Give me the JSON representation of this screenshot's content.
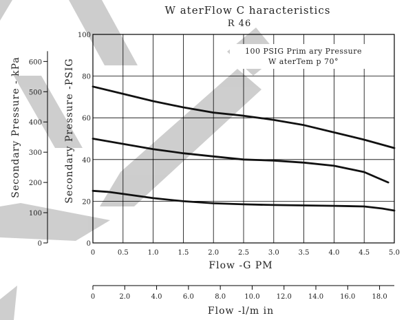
{
  "chart_data": {
    "type": "line",
    "title": "W aterFlow C haracteristics",
    "subtitle": "R 46",
    "annotation": [
      "100 PSIG Prim ary Pressure",
      "W aterTem p 70°"
    ],
    "xlabel": "Flow -G PM",
    "ylabel": "Secondary Pressure -PSIG",
    "x_ticks": [
      "0",
      "0.5",
      "1.0",
      "1.5",
      "2.0",
      "2.5",
      "3.0",
      "3.5",
      "4.0",
      "4.5",
      "5.0"
    ],
    "y_ticks": [
      "0",
      "20",
      "40",
      "60",
      "80",
      "100"
    ],
    "xlim": [
      0,
      5
    ],
    "ylim": [
      0,
      100
    ],
    "grid": true,
    "secondary_x_axis": {
      "label": "Flow -l/m in",
      "ticks": [
        "0",
        "2.0",
        "4.0",
        "6.0",
        "8.0",
        "10.0",
        "12.0",
        "14.0",
        "16.0",
        "18.0"
      ],
      "tick_values": [
        0,
        2,
        4,
        6,
        8,
        10,
        12,
        14,
        16,
        18
      ],
      "lpm_per_gpm": 3.785
    },
    "secondary_y_axis": {
      "label": "Secondary Pressure - kPa",
      "ticks": [
        "0",
        "100",
        "200",
        "300",
        "400",
        "500",
        "600"
      ],
      "tick_values": [
        0,
        100,
        200,
        300,
        400,
        500,
        600
      ],
      "kpa_per_psig": 6.895
    },
    "series": [
      {
        "x": [
          0,
          0.5,
          1.0,
          1.5,
          2.0,
          2.5,
          3.0,
          3.5,
          4.0,
          4.5,
          5.0
        ],
        "values": [
          75,
          71.5,
          68,
          65,
          62.5,
          61,
          59,
          56.5,
          53,
          49.5,
          45.5
        ]
      },
      {
        "x": [
          0,
          0.5,
          1.0,
          1.5,
          2.0,
          2.5,
          3.0,
          3.5,
          4.0,
          4.5,
          4.7,
          4.9
        ],
        "values": [
          50,
          47.5,
          45,
          43,
          41.5,
          40,
          39.5,
          38.5,
          37,
          34,
          31.5,
          29
        ]
      },
      {
        "x": [
          0,
          0.25,
          0.5,
          1.0,
          1.5,
          2.0,
          2.5,
          3.0,
          3.5,
          4.0,
          4.5,
          4.8,
          5.0
        ],
        "values": [
          25,
          24.5,
          23.5,
          21.5,
          20,
          19,
          18.5,
          18.2,
          18,
          17.8,
          17.5,
          16.5,
          15.5
        ]
      }
    ],
    "colors": {
      "line": "#111111",
      "grid": "#000000",
      "watermark": "#bdbdbd"
    }
  }
}
